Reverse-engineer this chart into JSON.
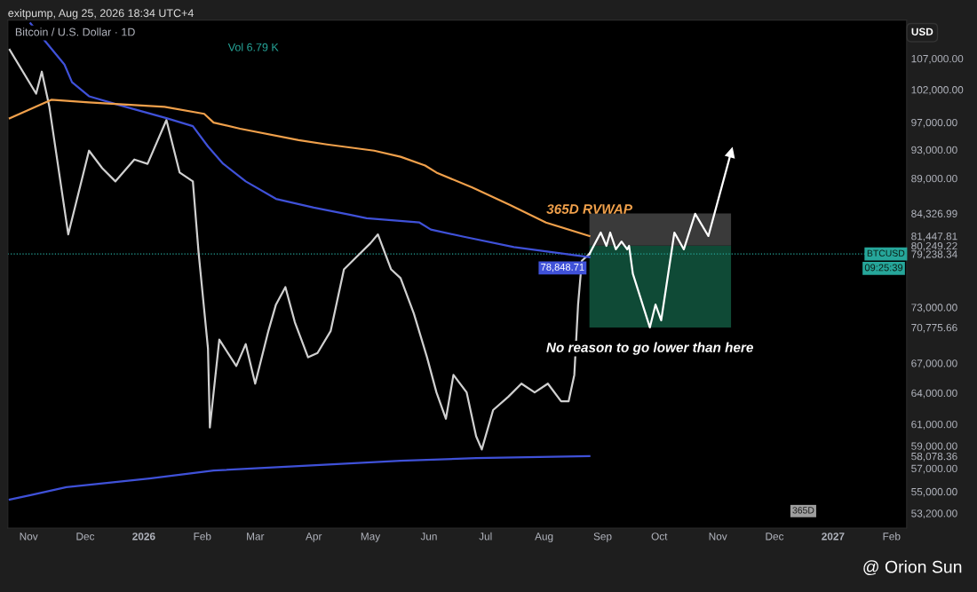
{
  "chart_data": {
    "type": "line",
    "title": "Bitcoin / U.S. Dollar · 1D",
    "ylabel": "USD",
    "annotations": [
      "exitpump, Aug 25, 2026 18:34 UTC+4",
      "Vol 6.79 K",
      "365D",
      "@ Orion Sun",
      "09:25:39",
      {
        "text": "No reason to go lower than here",
        "x": "2026-09-26",
        "y": 70775.66
      }
    ],
    "log": "y",
    "grid": false,
    "marker": "none",
    "line_style": "solid",
    "xlim": [
      "2025-10-21",
      "2027-02-09"
    ],
    "xticks": [
      {
        "value": "2025-11-01",
        "label": "Nov"
      },
      {
        "value": "2025-12-01",
        "label": "Dec"
      },
      {
        "value": "2026-01-01",
        "label": "2026"
      },
      {
        "value": "2026-02-01",
        "label": "Feb"
      },
      {
        "value": "2026-03-01",
        "label": "Mar"
      },
      {
        "value": "2026-04-01",
        "label": "Apr"
      },
      {
        "value": "2026-05-01",
        "label": "May"
      },
      {
        "value": "2026-06-01",
        "label": "Jun"
      },
      {
        "value": "2026-07-01",
        "label": "Jul"
      },
      {
        "value": "2026-08-01",
        "label": "Aug"
      },
      {
        "value": "2026-09-01",
        "label": "Sep"
      },
      {
        "value": "2026-10-01",
        "label": "Oct"
      },
      {
        "value": "2026-11-01",
        "label": "Nov"
      },
      {
        "value": "2026-12-01",
        "label": "Dec"
      },
      {
        "value": "2027-01-01",
        "label": "2027"
      },
      {
        "value": "2027-02-01",
        "label": "Feb"
      }
    ],
    "ylim": [
      52000,
      113500
    ],
    "yticks": [
      {
        "value": 107000,
        "label": "107,000.00"
      },
      {
        "value": 102000,
        "label": "102,000.00"
      },
      {
        "value": 97000,
        "label": "97,000.00"
      },
      {
        "value": 93000,
        "label": "93,000.00"
      },
      {
        "value": 89000,
        "label": "89,000.00"
      },
      {
        "value": 84326.99,
        "label": "84,326.99"
      },
      {
        "value": 81447.81,
        "label": "81,447.81"
      },
      {
        "value": 80249.22,
        "label": "80,249.22"
      },
      {
        "value": 79238.34,
        "label": "79,238.34"
      },
      {
        "value": 73000,
        "label": "73,000.00"
      },
      {
        "value": 70775.66,
        "label": "70,775.66"
      },
      {
        "value": 67000,
        "label": "67,000.00"
      },
      {
        "value": 64000,
        "label": "64,000.00"
      },
      {
        "value": 61000,
        "label": "61,000.00"
      },
      {
        "value": 59000,
        "label": "59,000.00"
      },
      {
        "value": 58078.36,
        "label": "58,078.36"
      },
      {
        "value": 57000,
        "label": "57,000.00"
      },
      {
        "value": 55000,
        "label": "55,000.00"
      },
      {
        "value": 53200,
        "label": "53,200.00"
      }
    ],
    "ref_lines": [
      {
        "axis": "y",
        "value": 79238.34,
        "label": "BTCUSD",
        "color": "#26a69a",
        "line_style": "dotted"
      }
    ],
    "bands": [
      {
        "axis": "y",
        "from": 70775.66,
        "to": 80249.22,
        "color": "#0f4a36"
      },
      {
        "axis": "y",
        "from": 80249.22,
        "to": 84326.99,
        "color": "#3a3a3a"
      }
    ],
    "series": [
      {
        "color": "#d0d0d0",
        "x": [
          "2025-10-22",
          "2025-11-05",
          "2025-11-08",
          "2025-11-12",
          "2025-11-22",
          "2025-12-03",
          "2025-12-10",
          "2025-12-17",
          "2025-12-27",
          "2026-01-03",
          "2026-01-13",
          "2026-01-20",
          "2026-01-27",
          "2026-01-30",
          "2026-02-04",
          "2026-02-05",
          "2026-02-10",
          "2026-02-19",
          "2026-02-24",
          "2026-03-01",
          "2026-03-08",
          "2026-03-12",
          "2026-03-17",
          "2026-03-22",
          "2026-03-29",
          "2026-04-03",
          "2026-04-10",
          "2026-04-17",
          "2026-04-24",
          "2026-05-01",
          "2026-05-05",
          "2026-05-12",
          "2026-05-17",
          "2026-05-24",
          "2026-05-31",
          "2026-06-05",
          "2026-06-10",
          "2026-06-14",
          "2026-06-21",
          "2026-06-26",
          "2026-06-29",
          "2026-07-05",
          "2026-07-13",
          "2026-07-20",
          "2026-07-27",
          "2026-08-03",
          "2026-08-10",
          "2026-08-14",
          "2026-08-17",
          "2026-08-19",
          "2026-08-21",
          "2026-08-25"
        ],
        "values": [
          108450,
          101380,
          104860,
          99350,
          81660,
          92870,
          90400,
          88590,
          91620,
          91010,
          97350,
          89800,
          88590,
          79480,
          68530,
          60690,
          69460,
          66700,
          68990,
          64920,
          70400,
          73310,
          75310,
          71350,
          67600,
          68050,
          70400,
          77380,
          78950,
          80550,
          81660,
          77380,
          76350,
          72320,
          67600,
          64050,
          61510,
          65800,
          64050,
          59880,
          58680,
          62340,
          63620,
          64920,
          64050,
          64920,
          63190,
          63190,
          65800,
          73310,
          78420,
          79238
        ]
      },
      {
        "color": "#3f51d8",
        "x": [
          "2025-11-02",
          "2025-11-20",
          "2025-11-24",
          "2025-12-03",
          "2025-12-19",
          "2026-01-13",
          "2026-01-27",
          "2026-02-04",
          "2026-02-12",
          "2026-02-24",
          "2026-03-12",
          "2026-04-01",
          "2026-04-20",
          "2026-04-29",
          "2026-05-27",
          "2026-06-02",
          "2026-06-19",
          "2026-07-16",
          "2026-08-25"
        ],
        "values": [
          112940,
          106000,
          103170,
          100970,
          99620,
          97620,
          96440,
          93470,
          91030,
          88590,
          86240,
          85090,
          84170,
          83720,
          83160,
          82270,
          81390,
          80080,
          78848.71
        ],
        "value_labels": [
          null,
          null,
          null,
          null,
          null,
          null,
          null,
          null,
          null,
          null,
          null,
          null,
          null,
          null,
          null,
          null,
          null,
          null,
          "78,848.71"
        ]
      },
      {
        "name": "365D RVWAP",
        "color": "#f0a04b",
        "x": [
          "2025-10-22",
          "2025-11-13",
          "2025-12-03",
          "2026-01-12",
          "2026-02-02",
          "2026-02-07",
          "2026-02-21",
          "2026-03-24",
          "2026-04-08",
          "2026-05-03",
          "2026-05-17",
          "2026-05-30",
          "2026-06-05",
          "2026-06-24",
          "2026-07-14",
          "2026-08-02",
          "2026-08-25"
        ],
        "values": [
          97620,
          100420,
          100020,
          99350,
          98280,
          96970,
          96060,
          94390,
          93760,
          92870,
          92000,
          90770,
          89800,
          87750,
          85430,
          83160,
          81447.81
        ]
      },
      {
        "color": "#3f51d8",
        "x": [
          "2025-10-22",
          "2025-11-02",
          "2025-11-21",
          "2026-01-04",
          "2026-02-07",
          "2026-03-24",
          "2026-05-17",
          "2026-06-26",
          "2026-08-25"
        ],
        "values": [
          54330,
          54700,
          55370,
          56120,
          56810,
          57200,
          57660,
          57900,
          58078.36
        ]
      },
      {
        "color": "#ffffff",
        "x": [
          "2026-08-25",
          "2026-08-31",
          "2026-09-03",
          "2026-09-05",
          "2026-09-08",
          "2026-09-11",
          "2026-09-14",
          "2026-09-15",
          "2026-09-17",
          "2026-09-26",
          "2026-09-29",
          "2026-10-02",
          "2026-10-09",
          "2026-10-14",
          "2026-10-20",
          "2026-10-27",
          "2026-11-08"
        ],
        "values": [
          79238,
          81890,
          80230,
          81890,
          79800,
          80770,
          79800,
          80230,
          76870,
          70780,
          73310,
          71550,
          81890,
          79800,
          84290,
          81450,
          92620
        ]
      }
    ]
  }
}
